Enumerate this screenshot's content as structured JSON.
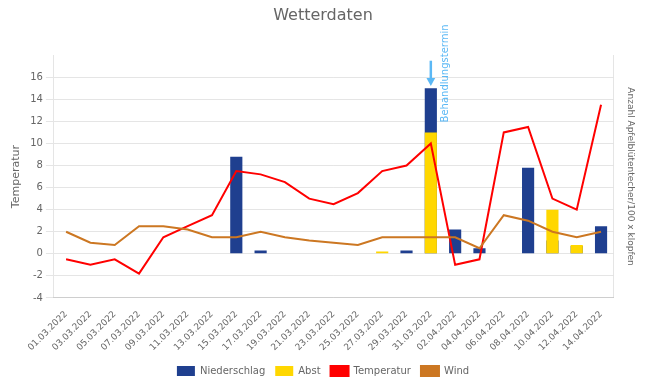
{
  "chart_data": {
    "type": "bar",
    "title": "Wetterdaten",
    "ylabel": "Temperatur",
    "y2label": "Anzahl Apfelblütentecher/100 x klopfen",
    "categories": [
      "01.03.2022",
      "03.03.2022",
      "05.03.2022",
      "07.03.2022",
      "09.03.2022",
      "11.03.2022",
      "13.03.2022",
      "15.03.2022",
      "17.03.2022",
      "19.03.2022",
      "21.03.2022",
      "23.03.2022",
      "25.03.2022",
      "27.03.2022",
      "29.03.2022",
      "31.03.2022",
      "02.04.2022",
      "04.04.2022",
      "06.04.2022",
      "08.04.2022",
      "10.04.2022",
      "12.04.2022",
      "14.04.2022"
    ],
    "series": [
      {
        "name": "Niederschlag",
        "type": "bar",
        "color": "#1F3F8F",
        "values": [
          0,
          0,
          0,
          0,
          0,
          0,
          0,
          8.8,
          0.3,
          0,
          0,
          0,
          0,
          0,
          0.3,
          15.0,
          2.2,
          0.5,
          0,
          7.8,
          1.2,
          0.7,
          2.5
        ]
      },
      {
        "name": "Abst",
        "type": "bar",
        "color": "#FFD700",
        "values": [
          0,
          0,
          0,
          0,
          0,
          0,
          0,
          0,
          0,
          0,
          0,
          0,
          0,
          0.2,
          0,
          11.0,
          0,
          0,
          0,
          0,
          4.0,
          0.8,
          0
        ]
      },
      {
        "name": "Temperatur",
        "type": "line",
        "marker": "none",
        "color": "#FF0000",
        "values": [
          -0.5,
          -1.0,
          -0.5,
          -1.8,
          1.5,
          2.5,
          3.5,
          7.5,
          7.2,
          6.5,
          5.0,
          4.5,
          5.5,
          7.5,
          8.0,
          10.0,
          -1.0,
          -0.5,
          11.0,
          11.5,
          5.0,
          4.0,
          13.5
        ]
      },
      {
        "name": "Wind",
        "type": "line",
        "marker": "none",
        "color": "#CC7722",
        "values": [
          2.0,
          1.0,
          0.8,
          2.5,
          2.5,
          2.2,
          1.5,
          1.5,
          2.0,
          1.5,
          1.2,
          1.0,
          0.8,
          1.5,
          1.5,
          1.5,
          1.5,
          0.5,
          3.5,
          3.0,
          2.0,
          1.5,
          2.0
        ]
      }
    ],
    "ylim": [
      -4,
      18
    ],
    "yticks": [
      -4,
      -2,
      0,
      2,
      4,
      6,
      8,
      10,
      12,
      14,
      16
    ],
    "y2lim": [
      -4,
      18
    ],
    "grid": true,
    "legend": "bottom",
    "annotations": [
      {
        "text": "Behandlungstermin",
        "x": "31.03.2022",
        "y_start": 17.5,
        "y_end": 15.2,
        "color": "#5BB8F5"
      }
    ]
  }
}
